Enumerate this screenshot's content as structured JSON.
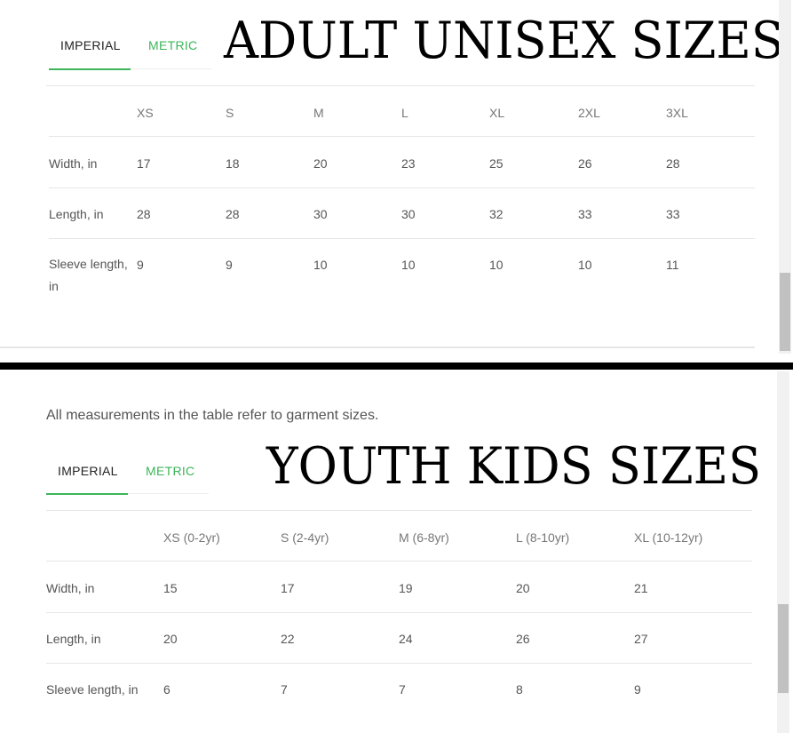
{
  "adult": {
    "title": "ADULT UNISEX SIZES",
    "tabs": [
      "IMPERIAL",
      "METRIC"
    ],
    "headers": [
      "XS",
      "S",
      "M",
      "L",
      "XL",
      "2XL",
      "3XL"
    ],
    "rows": [
      {
        "label": "Width, in",
        "values": [
          "17",
          "18",
          "20",
          "23",
          "25",
          "26",
          "28"
        ]
      },
      {
        "label": "Length, in",
        "values": [
          "28",
          "28",
          "30",
          "30",
          "32",
          "33",
          "33"
        ]
      },
      {
        "label": "Sleeve length, in",
        "values": [
          "9",
          "9",
          "10",
          "10",
          "10",
          "10",
          "11"
        ]
      }
    ]
  },
  "youth": {
    "note": "All measurements in the table refer to garment sizes.",
    "title": "YOUTH KIDS SIZES",
    "tabs": [
      "IMPERIAL",
      "METRIC"
    ],
    "headers": [
      "XS (0-2yr)",
      "S (2-4yr)",
      "M (6-8yr)",
      "L (8-10yr)",
      "XL (10-12yr)"
    ],
    "rows": [
      {
        "label": "Width, in",
        "values": [
          "15",
          "17",
          "19",
          "20",
          "21"
        ]
      },
      {
        "label": "Length, in",
        "values": [
          "20",
          "22",
          "24",
          "26",
          "27"
        ]
      },
      {
        "label": "Sleeve length, in",
        "values": [
          "6",
          "7",
          "7",
          "8",
          "9"
        ]
      }
    ]
  },
  "colors": {
    "accent": "#3cb55a",
    "divider": "#000000"
  }
}
